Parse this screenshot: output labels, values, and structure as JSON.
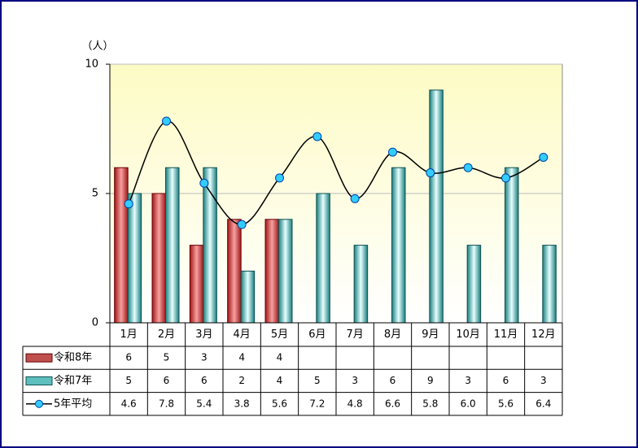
{
  "chart_data": {
    "type": "bar",
    "unit_label": "（人）",
    "categories": [
      "1月",
      "2月",
      "3月",
      "4月",
      "5月",
      "6月",
      "7月",
      "8月",
      "9月",
      "10月",
      "11月",
      "12月"
    ],
    "series": [
      {
        "name": "令和8年",
        "color": "#c0504d",
        "values": [
          6,
          5,
          3,
          4,
          4,
          null,
          null,
          null,
          null,
          null,
          null,
          null
        ]
      },
      {
        "name": "令和7年",
        "color": "#4bacc6",
        "values": [
          5,
          6,
          6,
          2,
          4,
          5,
          3,
          6,
          9,
          3,
          6,
          3
        ]
      },
      {
        "name": "5年平均",
        "type": "line",
        "color": "#33ccff",
        "values": [
          4.6,
          7.8,
          5.4,
          3.8,
          5.6,
          7.2,
          4.8,
          6.6,
          5.8,
          6,
          5.6,
          6.4
        ],
        "value_labels": [
          "4.6",
          "7.8",
          "5.4",
          "3.8",
          "5.6",
          "7.2",
          "4.8",
          "6.6",
          "5.8",
          "6.0",
          "5.6",
          "6.4"
        ]
      }
    ],
    "ylim": [
      0,
      10
    ],
    "yticks": [
      0,
      5,
      10
    ],
    "grid": true
  }
}
